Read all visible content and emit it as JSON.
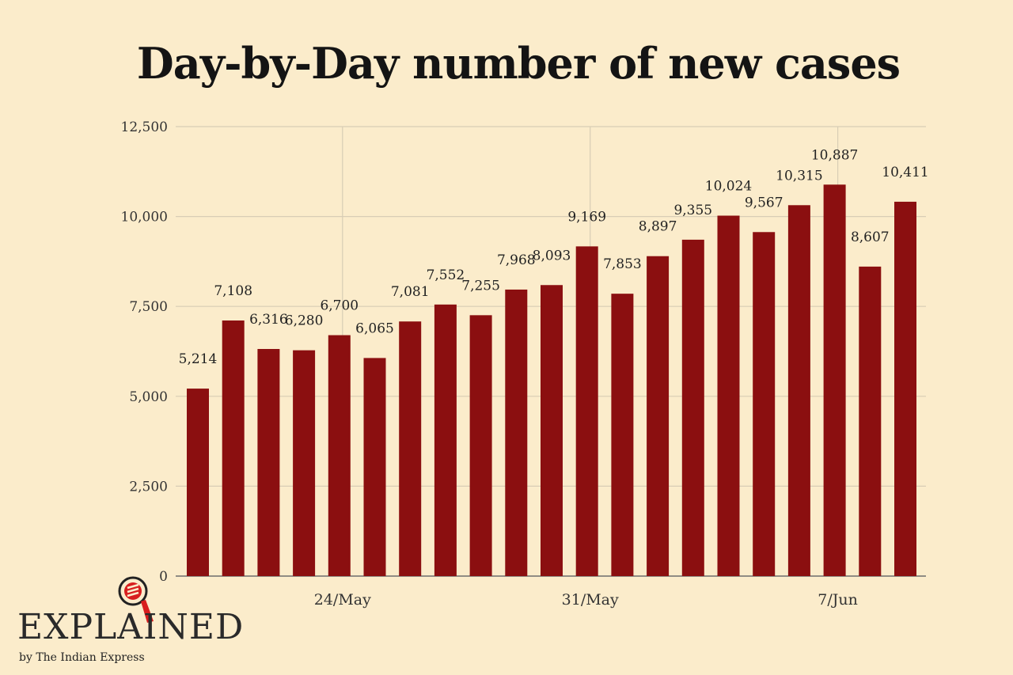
{
  "chart_data": {
    "type": "bar",
    "title": "Day-by-Day number of new cases",
    "xlabel": "",
    "ylabel": "",
    "ylim": [
      0,
      12500
    ],
    "yticks": [
      0,
      2500,
      5000,
      7500,
      10000,
      12500
    ],
    "ytick_labels": [
      "0",
      "2,500",
      "5,000",
      "7,500",
      "10,000",
      "12,500"
    ],
    "x_tick_labels": [
      "24/May",
      "31/May",
      "7/Jun"
    ],
    "x_tick_positions": [
      4,
      11,
      18
    ],
    "grid": true,
    "color": "#8b0f10",
    "values": [
      5214,
      7108,
      6316,
      6280,
      6700,
      6065,
      7081,
      7552,
      7255,
      7968,
      8093,
      9169,
      7853,
      8897,
      9355,
      10024,
      9567,
      10315,
      10887,
      8607,
      10411
    ],
    "data_labels": [
      "5,214",
      "7,108",
      "6,316",
      "6,280",
      "6,700",
      "6,065",
      "7,081",
      "7,552",
      "7,255",
      "7,968",
      "8,093",
      "9,169",
      "7,853",
      "8,897",
      "9,355",
      "10,024",
      "9,567",
      "10,315",
      "10,887",
      "8,607",
      "10,411"
    ]
  },
  "logo": {
    "word": "EXPLAINED",
    "sub": "by The Indian Express"
  }
}
